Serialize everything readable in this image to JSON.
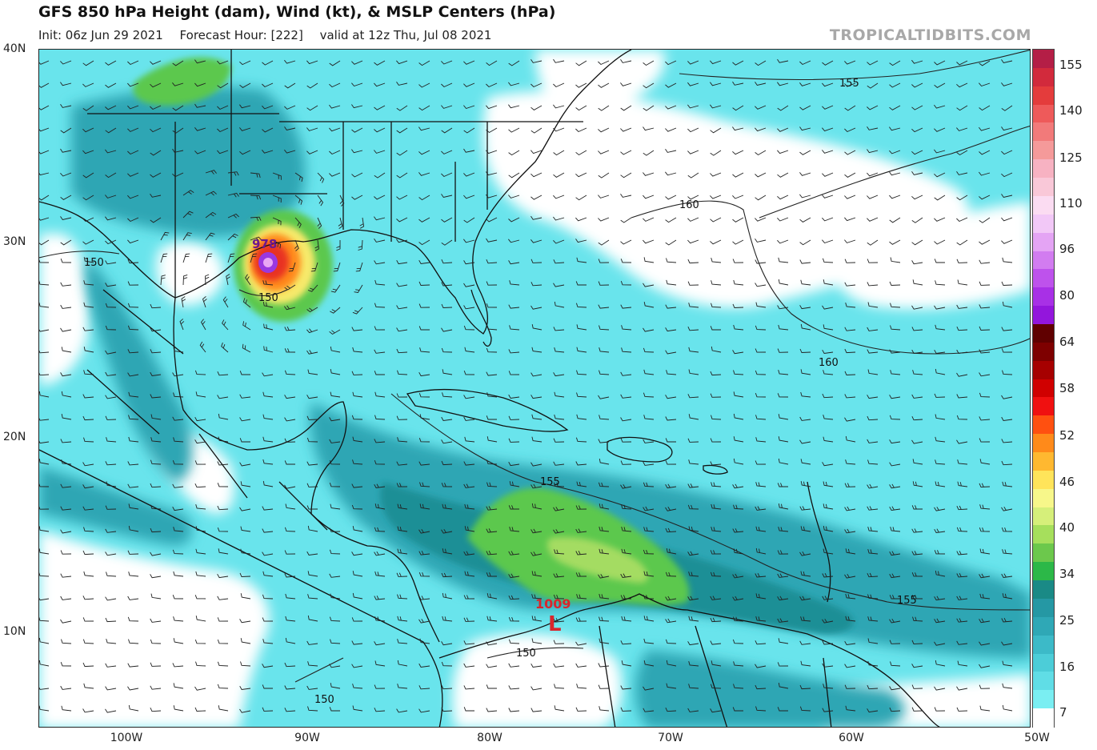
{
  "header": {
    "title": "GFS 850 hPa Height (dam), Wind (kt), & MSLP Centers (hPa)",
    "init": "Init: 06z Jun 29 2021",
    "forecast_hour": "Forecast Hour: [222]",
    "valid": "valid at 12z Thu, Jul 08 2021",
    "brand": "TROPICALTIDBITS.COM"
  },
  "axes": {
    "lat_labels": [
      "40N",
      "30N",
      "20N",
      "10N"
    ],
    "lon_labels": [
      "100W",
      "90W",
      "80W",
      "70W",
      "60W",
      "50W"
    ]
  },
  "colorbar": {
    "labels": [
      "155",
      "140",
      "125",
      "110",
      "96",
      "80",
      "64",
      "58",
      "52",
      "46",
      "40",
      "34",
      "25",
      "16",
      "7"
    ],
    "colors": [
      "#b41e46",
      "#d22a3c",
      "#e43c3c",
      "#ee5a5a",
      "#f27a7a",
      "#f59a9a",
      "#f7b2c2",
      "#f9c8d8",
      "#fbdcf2",
      "#f2c8f7",
      "#e4a4f4",
      "#d27cf0",
      "#be52ec",
      "#a830e6",
      "#9316dc",
      "#600000",
      "#7e0000",
      "#a60000",
      "#d00000",
      "#f01010",
      "#ff5010",
      "#ff8a1a",
      "#ffb830",
      "#ffe45a",
      "#f7f78a",
      "#d6ef7a",
      "#a6df5c",
      "#6cc84c",
      "#2cb848",
      "#1a8a86",
      "#2598a4",
      "#2fa8b6",
      "#3cbac8",
      "#4ccdd8",
      "#60dde6",
      "#7aeef2",
      "#ffffff"
    ]
  },
  "map_colors": {
    "ocean": "#69e4ec",
    "calm": "#ffffff",
    "strong": "#2fa6b4",
    "jet": "#1f8f96",
    "green": "#5cc84e",
    "lightgreen": "#a4dc62",
    "storm_red": "#e83020",
    "storm_purple": "#9a38e0",
    "low_marker": "#d8262c"
  },
  "contours": {
    "labels": [
      "155",
      "160",
      "150",
      "150",
      "160",
      "155",
      "155",
      "150",
      "150"
    ]
  },
  "pressure_centers": [
    {
      "value": "978",
      "kind": "low"
    },
    {
      "value": "1009",
      "kind": "low",
      "symbol": "L"
    }
  ]
}
